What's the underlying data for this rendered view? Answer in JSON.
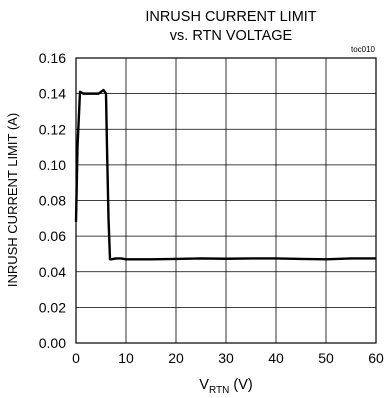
{
  "chart_data": {
    "type": "line",
    "title_line1": "INRUSH CURRENT LIMIT",
    "title_line2": "vs. RTN VOLTAGE",
    "figure_tag": "toc010",
    "xlabel_main": "V",
    "xlabel_sub": "RTN",
    "xlabel_unit": " (V)",
    "ylabel": "INRUSH CURRENT LIMIT (A)",
    "xlim": [
      0,
      60
    ],
    "ylim": [
      0,
      0.16
    ],
    "x_ticks": [
      "0",
      "10",
      "20",
      "30",
      "40",
      "50",
      "60"
    ],
    "y_ticks": [
      "0.00",
      "0.02",
      "0.04",
      "0.06",
      "0.08",
      "0.10",
      "0.12",
      "0.14",
      "0.16"
    ],
    "grid": true,
    "line_color": "#000000",
    "series": [
      {
        "x": [
          0,
          0.3,
          0.8,
          1.5,
          2.5,
          3.5,
          4.5,
          5.5,
          6.0,
          6.2,
          6.5,
          6.8,
          7,
          8,
          9,
          10,
          15,
          20,
          25,
          30,
          35,
          40,
          45,
          50,
          55,
          60
        ],
        "y": [
          0.068,
          0.11,
          0.141,
          0.14,
          0.14,
          0.14,
          0.14,
          0.142,
          0.14,
          0.11,
          0.07,
          0.047,
          0.047,
          0.0475,
          0.0475,
          0.047,
          0.047,
          0.0472,
          0.0475,
          0.0473,
          0.0475,
          0.0475,
          0.0472,
          0.047,
          0.0475,
          0.0475
        ]
      }
    ]
  }
}
